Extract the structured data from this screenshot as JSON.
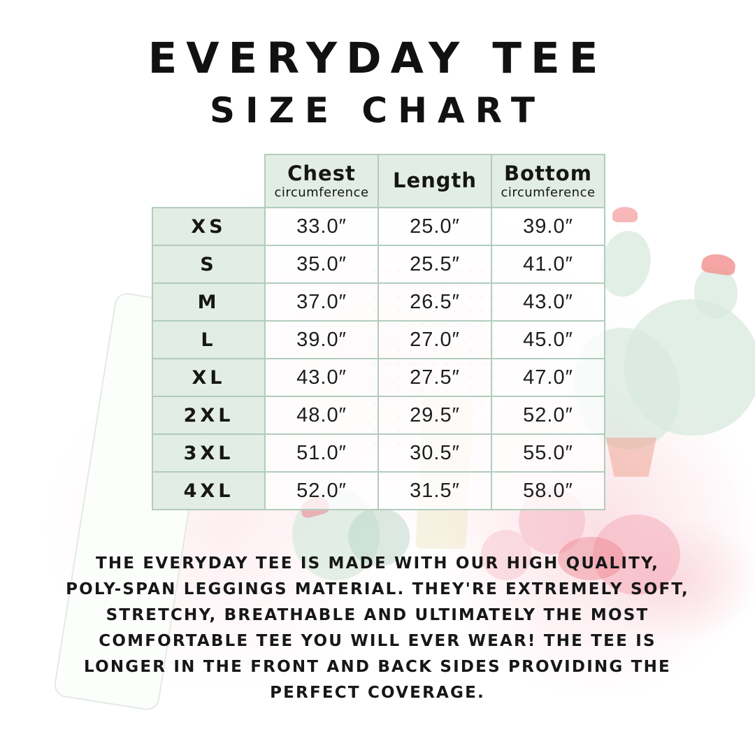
{
  "title": "EVERYDAY TEE",
  "subtitle": "SIZE CHART",
  "table": {
    "columns": [
      {
        "label": "Chest",
        "sublabel": "circumference"
      },
      {
        "label": "Length",
        "sublabel": ""
      },
      {
        "label": "Bottom",
        "sublabel": "circumference"
      }
    ],
    "rows": [
      {
        "size": "XS",
        "chest": "33.0″",
        "length": "25.0″",
        "bottom": "39.0″"
      },
      {
        "size": "S",
        "chest": "35.0″",
        "length": "25.5″",
        "bottom": "41.0″"
      },
      {
        "size": "M",
        "chest": "37.0″",
        "length": "26.5″",
        "bottom": "43.0″"
      },
      {
        "size": "L",
        "chest": "39.0″",
        "length": "27.0″",
        "bottom": "45.0″"
      },
      {
        "size": "XL",
        "chest": "43.0″",
        "length": "27.5″",
        "bottom": "47.0″"
      },
      {
        "size": "2XL",
        "chest": "48.0″",
        "length": "29.5″",
        "bottom": "52.0″"
      },
      {
        "size": "3XL",
        "chest": "51.0″",
        "length": "30.5″",
        "bottom": "55.0″"
      },
      {
        "size": "4XL",
        "chest": "52.0″",
        "length": "31.5″",
        "bottom": "58.0″"
      }
    ]
  },
  "description": {
    "lines": [
      "THE EVERYDAY TEE IS MADE WITH OUR HIGH QUALITY,",
      "POLY-SPAN LEGGINGS MATERIAL. THEY'RE EXTREMELY SOFT,",
      "STRETCHY, BREATHABLE AND ULTIMATELY THE MOST",
      "COMFORTABLE TEE YOU WILL EVER WEAR! THE TEE IS",
      "LONGER IN THE FRONT AND BACK SIDES PROVIDING THE",
      "PERFECT COVERAGE."
    ]
  },
  "colors": {
    "background": "#ffffff",
    "table_border": "#b2ccbd",
    "header_cell_bg": "#e0ecE4",
    "value_cell_bg": "#fdf8f7",
    "text": "#161616",
    "watermark_mint": "#d8e9df",
    "watermark_blush": "#f9d8de",
    "watermark_coral": "#f39694",
    "watermark_terracotta": "#eea693"
  }
}
